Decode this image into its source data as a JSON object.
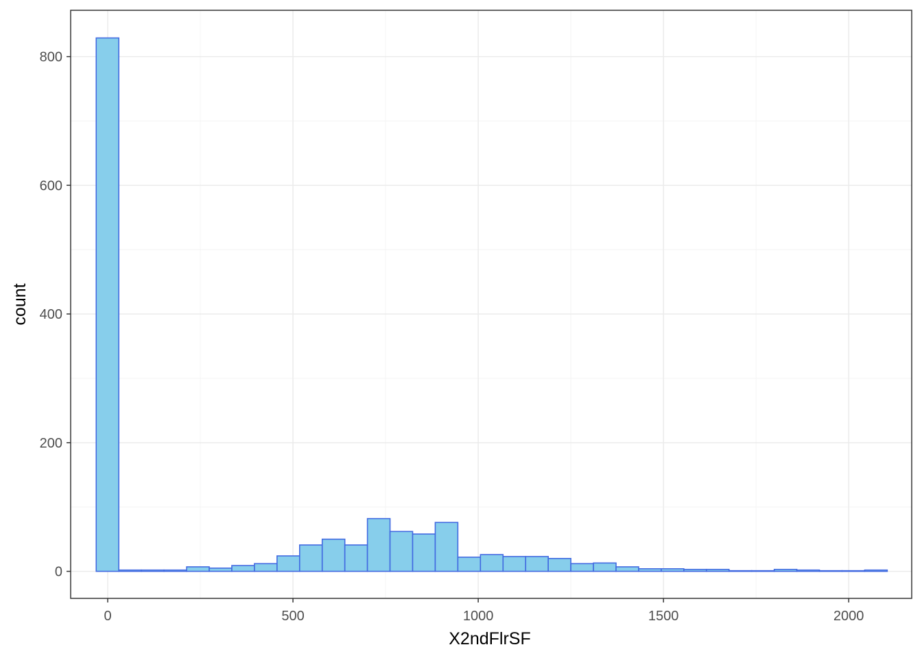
{
  "chart_data": {
    "type": "bar",
    "subtype": "histogram",
    "title": "",
    "xlabel": "X2ndFlrSF",
    "ylabel": "count",
    "xlim": [
      -100,
      2170
    ],
    "ylim": [
      -42,
      872
    ],
    "x_ticks": [
      0,
      500,
      1000,
      1500,
      2000
    ],
    "y_ticks": [
      0,
      200,
      400,
      600,
      800
    ],
    "grid": true,
    "legend": "none",
    "bin_width": 61,
    "bins": [
      {
        "x0": -31,
        "x1": 30,
        "count": 829
      },
      {
        "x0": 30,
        "x1": 91,
        "count": 2
      },
      {
        "x0": 91,
        "x1": 152,
        "count": 2
      },
      {
        "x0": 152,
        "x1": 213,
        "count": 2
      },
      {
        "x0": 213,
        "x1": 274,
        "count": 7
      },
      {
        "x0": 274,
        "x1": 335,
        "count": 5
      },
      {
        "x0": 335,
        "x1": 396,
        "count": 9
      },
      {
        "x0": 396,
        "x1": 457,
        "count": 12
      },
      {
        "x0": 457,
        "x1": 518,
        "count": 24
      },
      {
        "x0": 518,
        "x1": 579,
        "count": 41
      },
      {
        "x0": 579,
        "x1": 640,
        "count": 50
      },
      {
        "x0": 640,
        "x1": 701,
        "count": 41
      },
      {
        "x0": 701,
        "x1": 762,
        "count": 82
      },
      {
        "x0": 762,
        "x1": 823,
        "count": 62
      },
      {
        "x0": 823,
        "x1": 884,
        "count": 58
      },
      {
        "x0": 884,
        "x1": 945,
        "count": 76
      },
      {
        "x0": 945,
        "x1": 1006,
        "count": 22
      },
      {
        "x0": 1006,
        "x1": 1067,
        "count": 26
      },
      {
        "x0": 1067,
        "x1": 1128,
        "count": 23
      },
      {
        "x0": 1128,
        "x1": 1189,
        "count": 23
      },
      {
        "x0": 1189,
        "x1": 1250,
        "count": 20
      },
      {
        "x0": 1250,
        "x1": 1311,
        "count": 12
      },
      {
        "x0": 1311,
        "x1": 1372,
        "count": 13
      },
      {
        "x0": 1372,
        "x1": 1433,
        "count": 7
      },
      {
        "x0": 1433,
        "x1": 1494,
        "count": 4
      },
      {
        "x0": 1494,
        "x1": 1555,
        "count": 4
      },
      {
        "x0": 1555,
        "x1": 1616,
        "count": 3
      },
      {
        "x0": 1616,
        "x1": 1677,
        "count": 3
      },
      {
        "x0": 1677,
        "x1": 1738,
        "count": 1
      },
      {
        "x0": 1738,
        "x1": 1799,
        "count": 1
      },
      {
        "x0": 1799,
        "x1": 1860,
        "count": 3
      },
      {
        "x0": 1860,
        "x1": 1921,
        "count": 2
      },
      {
        "x0": 1921,
        "x1": 1982,
        "count": 1
      },
      {
        "x0": 1982,
        "x1": 2043,
        "count": 1
      },
      {
        "x0": 2043,
        "x1": 2104,
        "count": 2
      }
    ],
    "colors": {
      "bar_fill": "#87CEEB",
      "bar_stroke": "#4169E1",
      "panel_border": "#333333",
      "grid_major": "#ebebeb",
      "grid_minor": "#f4f4f4",
      "tick_label": "#4d4d4d"
    }
  }
}
